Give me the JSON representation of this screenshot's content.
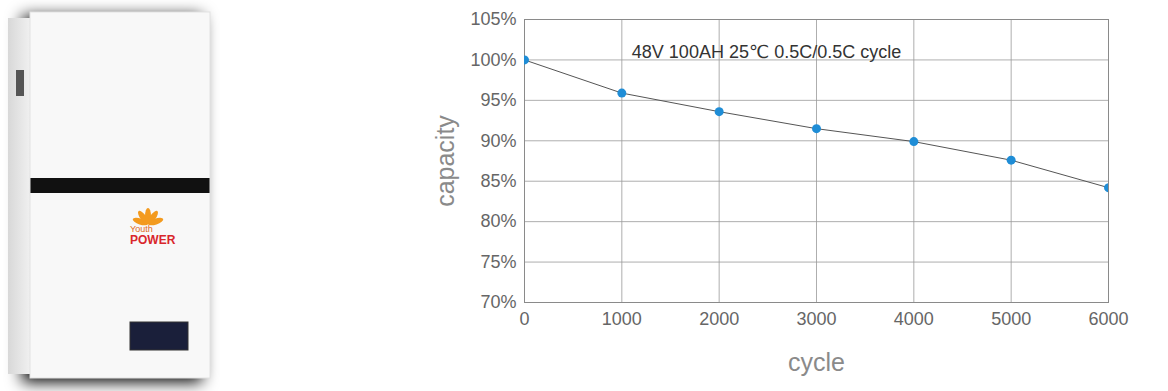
{
  "chart_data": {
    "type": "line",
    "title": "48V 100AH 25℃ 0.5C/0.5C cycle",
    "x_label": "cycle",
    "y_label": "capacity",
    "x": [
      0,
      1000,
      2000,
      3000,
      4000,
      5000,
      6000
    ],
    "series": [
      {
        "name": "capacity",
        "color": "#1f8dd6",
        "values": [
          100,
          95.9,
          93.6,
          91.5,
          89.9,
          87.6,
          84.2
        ]
      }
    ],
    "xlim": [
      0,
      6000
    ],
    "xticks": [
      0,
      1000,
      2000,
      3000,
      4000,
      5000,
      6000
    ],
    "ylim": [
      70,
      105
    ],
    "yticks": [
      {
        "value": 70,
        "label": "70%"
      },
      {
        "value": 75,
        "label": "75%"
      },
      {
        "value": 80,
        "label": "80%"
      },
      {
        "value": 85,
        "label": "85%"
      },
      {
        "value": 90,
        "label": "90%"
      },
      {
        "value": 95,
        "label": "95%"
      },
      {
        "value": 100,
        "label": "100%"
      },
      {
        "value": 105,
        "label": "105%"
      }
    ],
    "grid": true,
    "marker": "circle",
    "line_style": "solid"
  },
  "photo": {
    "logo": [
      "Youth",
      "POWER"
    ]
  }
}
